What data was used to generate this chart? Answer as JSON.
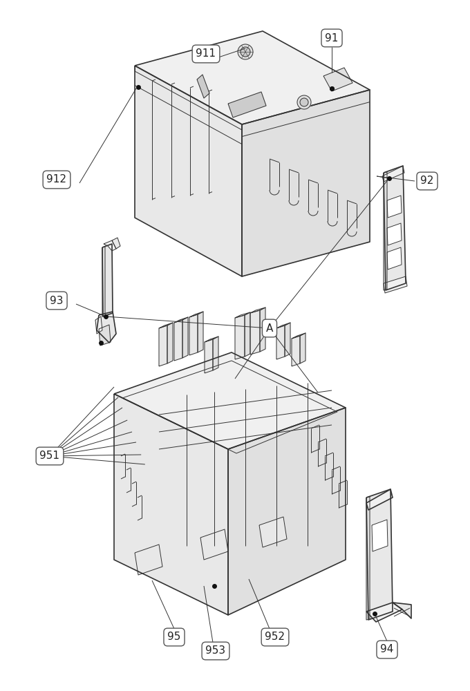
{
  "bg_color": "#ffffff",
  "line_color": "#333333",
  "lw_main": 1.2,
  "lw_thin": 0.7,
  "fill_top": "#f0f0f0",
  "fill_left": "#e8e8e8",
  "fill_right": "#e0e0e0",
  "fill_white": "#ffffff",
  "dot_color": "#111111",
  "label_bg": "#ffffff",
  "label_edge": "#555555",
  "label_fontsize": 11
}
